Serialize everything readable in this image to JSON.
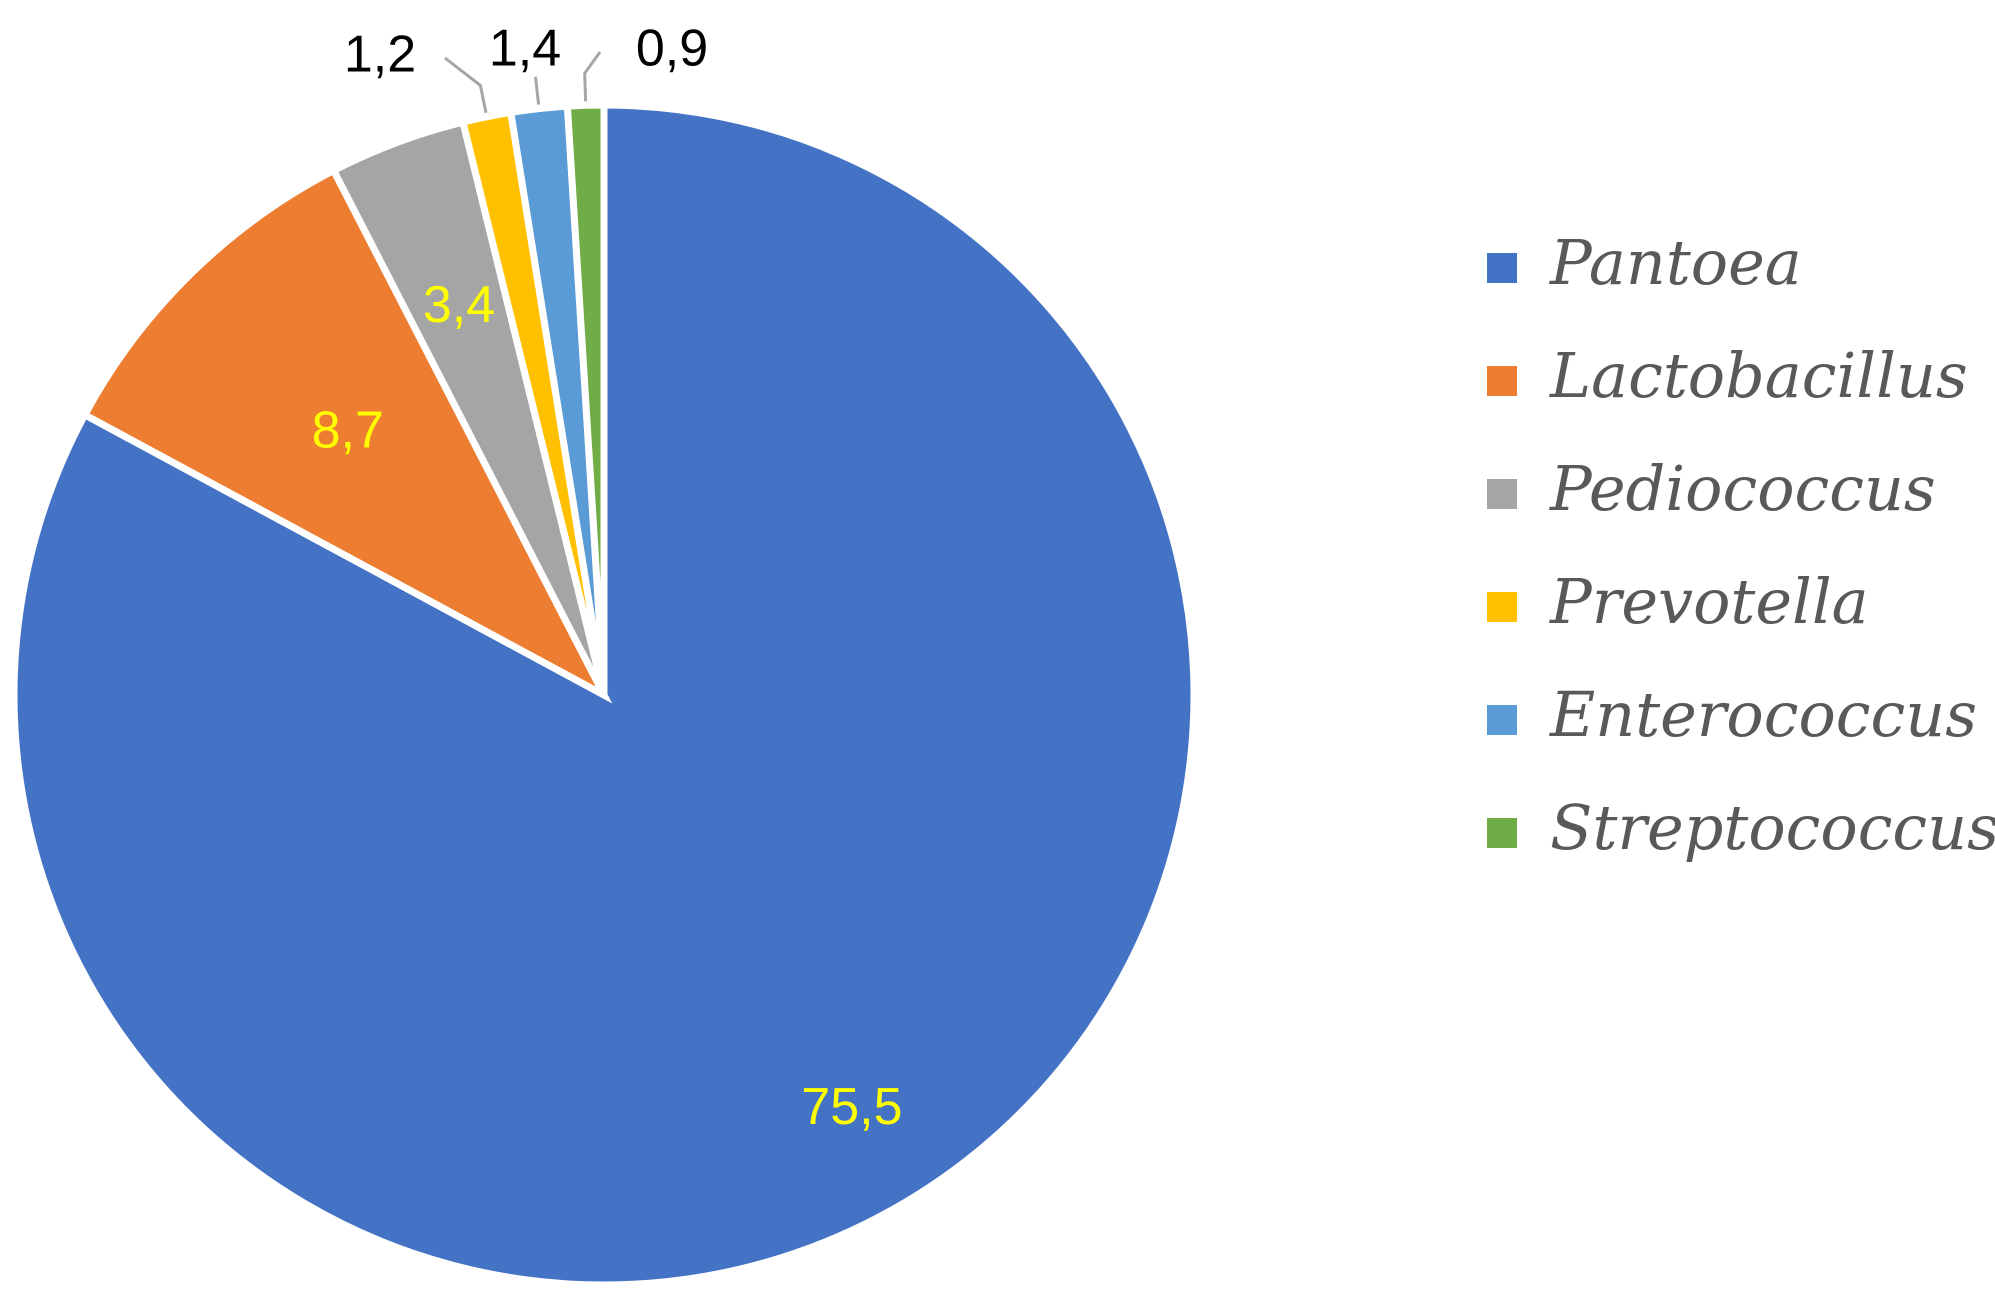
{
  "chart_data": {
    "type": "pie",
    "title": "",
    "slices": [
      {
        "label": "Pantoea",
        "value": 75.5,
        "display": "75,5",
        "color": "#4472C4",
        "label_color": "#FFFF00"
      },
      {
        "label": "Lactobacillus",
        "value": 8.7,
        "display": "8,7",
        "color": "#ED7D31",
        "label_color": "#FFFF00"
      },
      {
        "label": "Pediococcus",
        "value": 3.4,
        "display": "3,4",
        "color": "#A5A5A5",
        "label_color": "#FFFF00"
      },
      {
        "label": "Prevotella",
        "value": 1.2,
        "display": "1,2",
        "color": "#FFC000",
        "label_color": "#000000"
      },
      {
        "label": "Enterococcus",
        "value": 1.4,
        "display": "1,4",
        "color": "#5B9BD5",
        "label_color": "#000000"
      },
      {
        "label": "Streptococcus",
        "value": 0.9,
        "display": "0,9",
        "color": "#70AD47",
        "label_color": "#000000"
      }
    ],
    "legend_position": "right"
  }
}
